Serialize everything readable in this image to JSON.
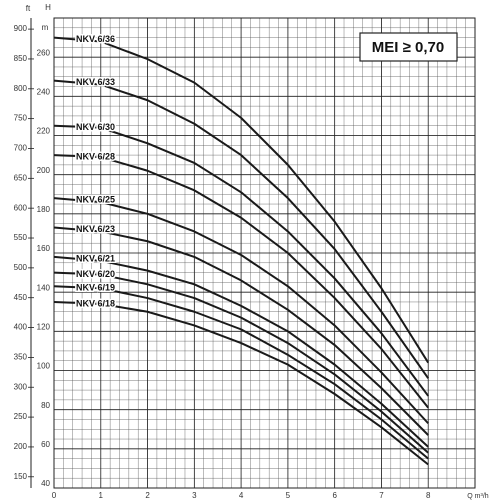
{
  "chart_data": {
    "type": "line",
    "annotation": "MEI ≥ 0,70",
    "x_label": "Q m³/h",
    "y_label": "H",
    "y_unit": "m",
    "y2_label": "ft",
    "x": [
      0,
      1,
      2,
      3,
      4,
      5,
      6,
      7,
      8
    ],
    "xlim": [
      0,
      9
    ],
    "xticks": [
      0,
      1,
      2,
      3,
      4,
      5,
      6,
      7,
      8
    ],
    "ylim": [
      40,
      280
    ],
    "yticks": [
      40,
      60,
      80,
      100,
      120,
      140,
      160,
      180,
      200,
      220,
      240,
      260
    ],
    "y2lim": [
      131.2,
      918.6
    ],
    "y2ticks": [
      150,
      200,
      250,
      300,
      350,
      400,
      450,
      500,
      550,
      600,
      650,
      700,
      750,
      800,
      850,
      900
    ],
    "grid": true,
    "minor_grid": true,
    "color": "#1a1a1a",
    "series": [
      {
        "name": "NKV 6/36",
        "values": [
          270,
          268,
          259,
          247,
          229,
          205,
          176,
          142,
          104
        ]
      },
      {
        "name": "NKV 6/33",
        "values": [
          248,
          246,
          238,
          226,
          210,
          188,
          162,
          130,
          96
        ]
      },
      {
        "name": "NKV 6/30",
        "values": [
          225,
          224,
          216,
          206,
          191,
          171,
          147,
          119,
          87
        ]
      },
      {
        "name": "NKV 6/28",
        "values": [
          210,
          209,
          202,
          192,
          178,
          160,
          137,
          111,
          81
        ]
      },
      {
        "name": "NKV 6/25",
        "values": [
          188,
          186,
          180,
          171,
          159,
          143,
          123,
          99,
          73
        ]
      },
      {
        "name": "NKV 6/23",
        "values": [
          173,
          171,
          166,
          158,
          146,
          131,
          113,
          91,
          67
        ]
      },
      {
        "name": "NKV 6/21",
        "values": [
          158,
          156,
          151,
          144,
          133,
          120,
          103,
          83,
          61
        ]
      },
      {
        "name": "NKV 6/20",
        "values": [
          150,
          149,
          144,
          137,
          127,
          114,
          98,
          79,
          58
        ]
      },
      {
        "name": "NKV 6/19",
        "values": [
          143,
          142,
          137,
          130,
          121,
          108,
          93,
          75,
          55
        ]
      },
      {
        "name": "NKV 6/18",
        "values": [
          135,
          134,
          130,
          123,
          114,
          103,
          88,
          71,
          52
        ]
      }
    ]
  }
}
